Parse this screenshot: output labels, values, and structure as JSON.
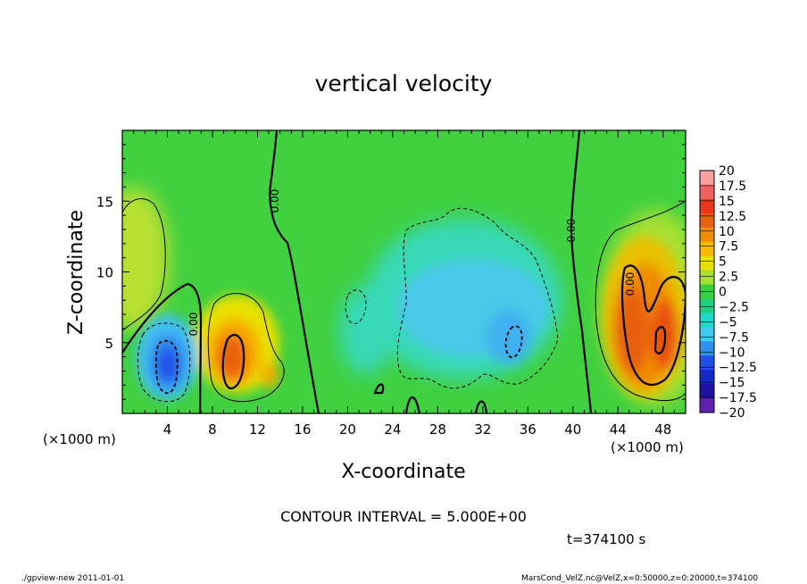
{
  "chart_data": {
    "type": "heatmap",
    "title": "vertical velocity",
    "xlabel": "X-coordinate",
    "ylabel": "Z-coordinate",
    "x_unit_label": "(×1000 m)",
    "y_unit_label": "(×1000 m)",
    "xlim": [
      0,
      50
    ],
    "ylim": [
      0,
      20
    ],
    "x_ticks": [
      4,
      8,
      12,
      16,
      20,
      24,
      28,
      32,
      36,
      40,
      44,
      48
    ],
    "y_ticks": [
      5,
      10,
      15
    ],
    "colorbar": {
      "levels": [
        "20",
        "17.5",
        "15",
        "12.5",
        "10",
        "7.5",
        "5",
        "2.5",
        "0",
        "−2.5",
        "−5",
        "−7.5",
        "−10",
        "−12.5",
        "−15",
        "−17.5",
        "−20"
      ],
      "colors": [
        "#f8a0a0",
        "#f06060",
        "#e83818",
        "#e86010",
        "#f08c00",
        "#f8b800",
        "#e8e000",
        "#a8e030",
        "#38d038",
        "#20d080",
        "#20d8c8",
        "#40c8f0",
        "#3090f0",
        "#2050e8",
        "#1828c8",
        "#2010a0",
        "#6020b0"
      ]
    },
    "contour_interval_text": "CONTOUR INTERVAL = 5.000E+00",
    "zero_contour_label": "0.00",
    "features": [
      {
        "type": "downdraft",
        "x": 4,
        "z": 3,
        "min": -12.5
      },
      {
        "type": "updraft",
        "x": 10,
        "z": 4.5,
        "max": 12.5
      },
      {
        "type": "downdraft",
        "x": 30,
        "z": 7,
        "min": -7.5
      },
      {
        "type": "updraft",
        "x": 47,
        "z": 6,
        "max": 12.5
      }
    ],
    "time_label": "t=374100 s"
  },
  "footer": {
    "left": "./gpview-new  2011-01-01",
    "right": "MarsCond_VelZ.nc@VelZ,x=0:50000,z=0:20000,t=374100"
  }
}
